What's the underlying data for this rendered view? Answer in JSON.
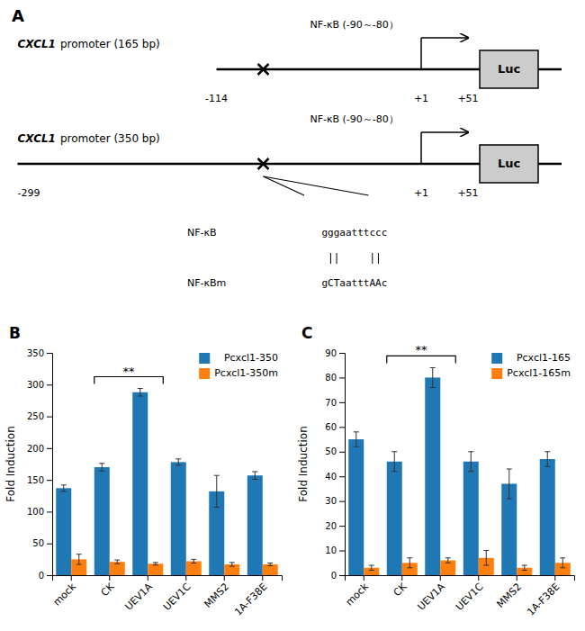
{
  "chart_data": [
    {
      "type": "diagram",
      "title": "A",
      "annotations": [
        "CXCL1",
        "promoter (165 bp)",
        "NF-κB (-90～-80）",
        "-114",
        "+1",
        "+51",
        "Luc",
        "CXCL1",
        "promoter (350 bp)",
        "NF-κB (-90～-80）",
        "-299",
        "+1",
        "+51",
        "Luc",
        "NF-κB",
        "gggaatttccc",
        "NF-κBm",
        "gCTaatttAAc"
      ]
    },
    {
      "type": "bar",
      "title": "B",
      "categories": [
        "mock",
        "CK",
        "UEV1A",
        "UEV1C",
        "MMS2",
        "1A-F38E"
      ],
      "series": [
        {
          "name": "Pcxcl1-350",
          "values": [
            137,
            170,
            288,
            178,
            132,
            157
          ],
          "errors": [
            5,
            6,
            6,
            5,
            25,
            6
          ]
        },
        {
          "name": "Pcxcl1-350m",
          "values": [
            25,
            21,
            18,
            22,
            17,
            17
          ],
          "errors": [
            8,
            3,
            2,
            3,
            3,
            2
          ]
        }
      ],
      "ylabel": "Fold Induction",
      "ylim": [
        0,
        350
      ],
      "yticks": [
        0,
        50,
        100,
        150,
        200,
        250,
        300,
        350
      ],
      "legend": "upper right",
      "annotations": [
        {
          "text": "**",
          "x": [
            "CK",
            "UEV1A"
          ]
        }
      ]
    },
    {
      "type": "bar",
      "title": "C",
      "categories": [
        "mock",
        "CK",
        "UEV1A",
        "UEV1C",
        "MMS2",
        "1A-F38E"
      ],
      "series": [
        {
          "name": "Pcxcl1-165",
          "values": [
            55,
            46,
            80,
            46,
            37,
            47
          ],
          "errors": [
            3,
            4,
            4,
            4,
            6,
            3
          ]
        },
        {
          "name": "Pcxcl1-165m",
          "values": [
            3,
            5,
            6,
            7,
            3,
            5
          ],
          "errors": [
            1,
            2,
            1,
            3,
            1,
            2
          ]
        }
      ],
      "ylabel": "Fold Induction",
      "ylim": [
        0,
        90
      ],
      "yticks": [
        0,
        10,
        20,
        30,
        40,
        50,
        60,
        70,
        80,
        90
      ],
      "legend": "upper right",
      "annotations": [
        {
          "text": "**",
          "x": [
            "CK",
            "UEV1A"
          ]
        }
      ]
    }
  ]
}
